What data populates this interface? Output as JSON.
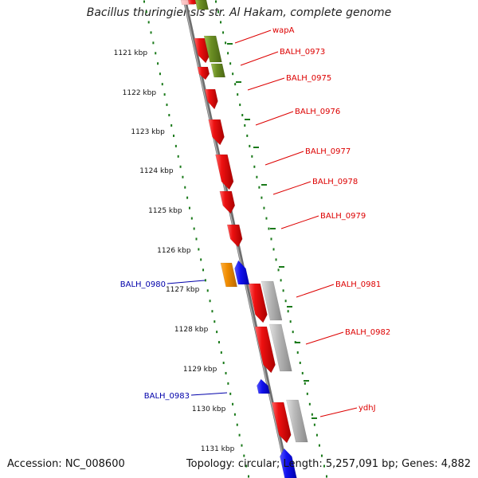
{
  "title": "Bacillus thuringiensis str. Al Hakam, complete genome",
  "footer": {
    "accession": "Accession: NC_008600",
    "topology": "Topology: circular; Length: 5,257,091 bp; Genes: 4,882"
  },
  "colors": {
    "backbone": "#808080",
    "ruler": "#1a7a1a",
    "gene_red": "#ee1111",
    "gene_olive": "#6b8e23",
    "gene_gray": "#b0b0b0",
    "gene_blue": "#1111ee",
    "gene_orange": "#f08c00",
    "label_red": "#dd0000",
    "label_blue": "#0000aa"
  },
  "kbp_labels": [
    "1121 kbp",
    "1122 kbp",
    "1123 kbp",
    "1124 kbp",
    "1125 kbp",
    "1126 kbp",
    "1127 kbp",
    "1128 kbp",
    "1129 kbp",
    "1130 kbp",
    "1131 kbp"
  ],
  "gene_labels": [
    {
      "text": "wapA",
      "color": "red"
    },
    {
      "text": "BALH_0973",
      "color": "red"
    },
    {
      "text": "BALH_0975",
      "color": "red"
    },
    {
      "text": "BALH_0976",
      "color": "red"
    },
    {
      "text": "BALH_0977",
      "color": "red"
    },
    {
      "text": "BALH_0978",
      "color": "red"
    },
    {
      "text": "BALH_0979",
      "color": "red"
    },
    {
      "text": "BALH_0980",
      "color": "blue"
    },
    {
      "text": "BALH_0981",
      "color": "red"
    },
    {
      "text": "BALH_0982",
      "color": "red"
    },
    {
      "text": "BALH_0983",
      "color": "blue"
    },
    {
      "text": "ydhJ",
      "color": "red"
    }
  ]
}
